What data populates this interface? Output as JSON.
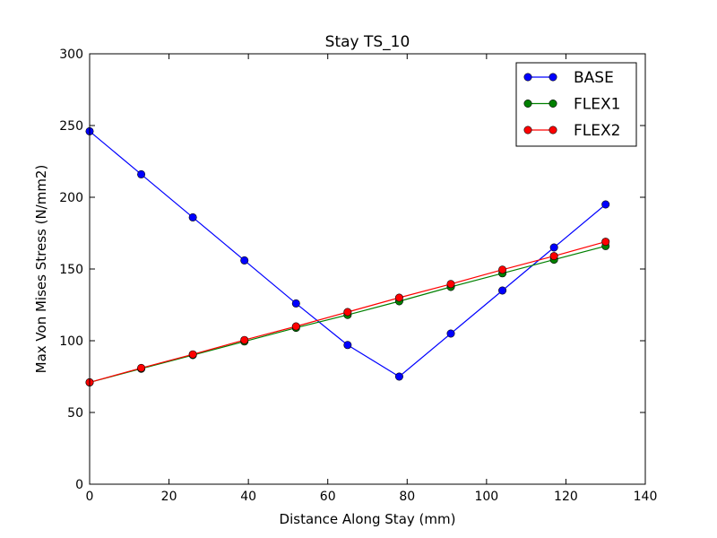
{
  "chart_data": {
    "type": "line",
    "title": "Stay TS_10",
    "xlabel": "Distance Along Stay (mm)",
    "ylabel": "Max Von Mises Stress (N/mm2)",
    "xlim": [
      0,
      140
    ],
    "ylim": [
      0,
      300
    ],
    "xticks": [
      "0",
      "20",
      "40",
      "60",
      "80",
      "100",
      "120",
      "140"
    ],
    "yticks": [
      "0",
      "50",
      "100",
      "150",
      "200",
      "250",
      "300"
    ],
    "grid": false,
    "legend_position": "top-right",
    "x": [
      0,
      13,
      26,
      39,
      52,
      65,
      78,
      91,
      104,
      117,
      130
    ],
    "series": [
      {
        "name": "BASE",
        "color": "#0000ff",
        "values": [
          246,
          216,
          186,
          156,
          126,
          97,
          75,
          105,
          135,
          165,
          195
        ]
      },
      {
        "name": "FLEX1",
        "color": "#008000",
        "values": [
          71,
          80.5,
          90,
          99.5,
          109,
          118,
          127.5,
          137.5,
          147,
          156.5,
          166
        ]
      },
      {
        "name": "FLEX2",
        "color": "#ff0000",
        "values": [
          71,
          81,
          90.5,
          100.5,
          110,
          120,
          130,
          139.5,
          149.5,
          159,
          169
        ]
      }
    ]
  }
}
